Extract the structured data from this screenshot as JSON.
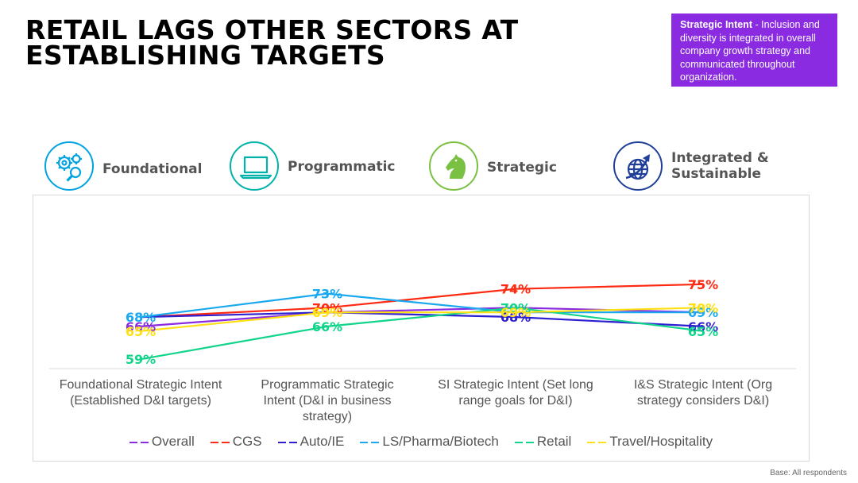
{
  "title": {
    "line1": "RETAIL LAGS OTHER SECTORS AT",
    "line2": "ESTABLISHING TARGETS"
  },
  "callout": {
    "heading": "Strategic Intent",
    "text": " - Inclusion and diversity is integrated in overall company growth strategy and communicated throughout organization.",
    "color": "#8a2be2"
  },
  "stages": [
    {
      "label": [
        "Foundational"
      ],
      "icon": "gears-magnifier-icon",
      "color": "#00a3e0"
    },
    {
      "label": [
        "Programmatic"
      ],
      "icon": "laptop-icon",
      "color": "#00b2a9"
    },
    {
      "label": [
        "Strategic"
      ],
      "icon": "chess-knight-icon",
      "color": "#7ac143"
    },
    {
      "label": [
        "Integrated &",
        "Sustainable"
      ],
      "icon": "globe-arrow-icon",
      "color": "#1f3f99"
    }
  ],
  "footnote": "Base: All respondents",
  "chart_data": {
    "type": "line",
    "categories": [
      [
        "Foundational Strategic Intent",
        "(Established D&I targets)"
      ],
      [
        "Programmatic  Strategic",
        "Intent (D&I in business",
        "strategy)"
      ],
      [
        "SI Strategic Intent (Set long",
        "range goals for D&I)"
      ],
      [
        "I&S  Strategic Intent (Org",
        "strategy considers D&I)"
      ]
    ],
    "series": [
      {
        "name": "Overall",
        "color": "#8a2be2",
        "values": [
          66,
          69,
          70,
          69
        ],
        "labels": [
          "66%",
          "",
          "",
          ""
        ]
      },
      {
        "name": "CGS",
        "color": "#ff2a12",
        "values": [
          68,
          70,
          74,
          75
        ],
        "labels": [
          "",
          "70%",
          "74%",
          "75%"
        ]
      },
      {
        "name": "Auto/IE",
        "color": "#2e1fd1",
        "values": [
          68,
          69,
          68,
          66
        ],
        "labels": [
          "",
          "",
          "68%",
          "66%"
        ]
      },
      {
        "name": "LS/Pharma/Biotech",
        "color": "#1aa9ef",
        "values": [
          68,
          73,
          69,
          69
        ],
        "labels": [
          "68%",
          "73%",
          "",
          "69%"
        ]
      },
      {
        "name": "Retail",
        "color": "#12d48a",
        "values": [
          59,
          66,
          70,
          65
        ],
        "labels": [
          "59%",
          "66%",
          "70%",
          "65%"
        ]
      },
      {
        "name": "Travel/Hospitality",
        "color": "#ffe015",
        "values": [
          65,
          69,
          69,
          70
        ],
        "labels": [
          "65%",
          "69%",
          "69%",
          "70%"
        ]
      }
    ],
    "ylim": [
      55,
      78
    ],
    "grid": false,
    "legend": "bottom"
  }
}
